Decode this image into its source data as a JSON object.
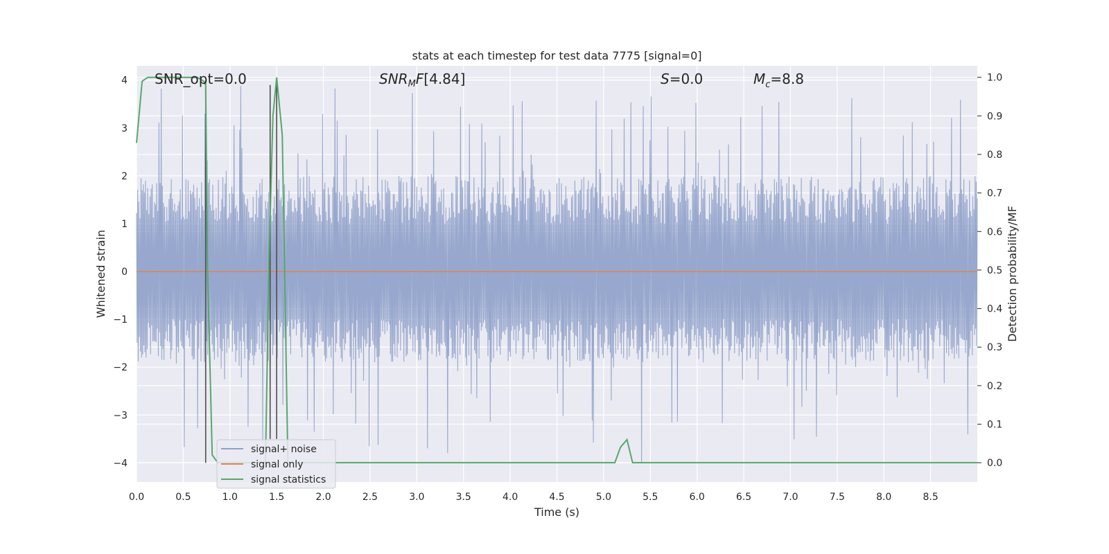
{
  "chart_data": {
    "type": "line",
    "title": "stats at each timestep for test data 7775 [signal=0]",
    "xlabel": "Time (s)",
    "ylabel": "Whitened strain",
    "y2label": "Detection probability/MF",
    "xlim": [
      0,
      9
    ],
    "ylim": [
      -4.4,
      4.3
    ],
    "y2lim": [
      -0.05,
      1.03
    ],
    "x_ticks": [
      "0.0",
      "0.5",
      "1.0",
      "1.5",
      "2.0",
      "2.5",
      "3.0",
      "3.5",
      "4.0",
      "4.5",
      "5.0",
      "5.5",
      "6.0",
      "6.5",
      "7.0",
      "7.5",
      "8.0",
      "8.5"
    ],
    "y_ticks": [
      "4",
      "3",
      "2",
      "1",
      "0",
      "−1",
      "−2",
      "−3",
      "−4"
    ],
    "y2_ticks": [
      "1.0",
      "0.9",
      "0.8",
      "0.7",
      "0.6",
      "0.5",
      "0.4",
      "0.3",
      "0.2",
      "0.1",
      "0.0"
    ],
    "grid": true,
    "legend_position": "lower-left",
    "annotations": {
      "snr_opt": "SNR_opt=0.0",
      "snr_mf": "[4.84]",
      "s_value": "=0.0",
      "mc": "=8.8"
    },
    "series": [
      {
        "name": "signal+ noise",
        "axis": "left",
        "color": "#8ea0c9",
        "kind": "noise",
        "envelope_upper": 2.0,
        "envelope_lower": -1.9,
        "max": 3.9,
        "min": -4.0
      },
      {
        "name": "signal only",
        "axis": "left",
        "color": "#dd8452",
        "x": [
          0,
          9
        ],
        "y": [
          0,
          0
        ]
      },
      {
        "name": "signal statistics",
        "axis": "right",
        "color": "#55a868",
        "x": [
          0.0,
          0.06,
          0.12,
          0.25,
          0.5,
          0.65,
          0.72,
          0.74,
          0.76,
          0.81,
          0.87,
          1.38,
          1.42,
          1.46,
          1.5,
          1.56,
          1.62,
          5.12,
          5.18,
          5.25,
          5.31,
          9.0
        ],
        "y": [
          0.83,
          0.99,
          1.0,
          1.0,
          1.0,
          1.0,
          0.99,
          0.98,
          0.5,
          0.02,
          0.0,
          0.0,
          0.55,
          0.9,
          1.0,
          0.85,
          0.0,
          0.0,
          0.04,
          0.06,
          0.0,
          0.0
        ]
      }
    ],
    "vertical_lines": [
      {
        "x": 0.74,
        "y_from": -4.0,
        "y_to": 4.0,
        "color": "#4d4d4d"
      },
      {
        "x": 1.43,
        "y_from": -3.5,
        "y_to": 3.9,
        "color": "#4d4d4d"
      },
      {
        "x": 1.5,
        "y_from": -3.5,
        "y_to": 3.9,
        "color": "#4d4d4d"
      }
    ]
  }
}
